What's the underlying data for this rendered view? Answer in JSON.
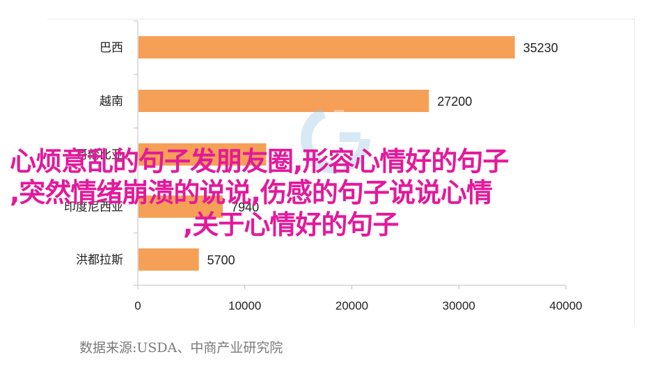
{
  "chart_data": {
    "type": "bar",
    "orientation": "horizontal",
    "categories": [
      "巴西",
      "越南",
      "哥伦比亚",
      "印度尼西亚",
      "洪都拉斯"
    ],
    "values": [
      35230,
      27200,
      12000,
      7940,
      5700
    ],
    "data_labels": [
      "35230",
      "27200",
      "",
      "7940",
      "5700"
    ],
    "xlim": [
      0,
      40000
    ],
    "x_ticks": [
      "0",
      "10000",
      "20000",
      "30000",
      "40000"
    ],
    "bar_color": "#f5a056",
    "grid": false
  },
  "overlay_text": {
    "line1": "心烦意乱的句子发朋友圈,形容心情好的句子",
    "line2": ",突然情绪崩溃的说说,伤感的句子说说心情",
    "line3": ",关于心情好的句子"
  },
  "source_note": "数据来源:USDA、中商产业研究院"
}
